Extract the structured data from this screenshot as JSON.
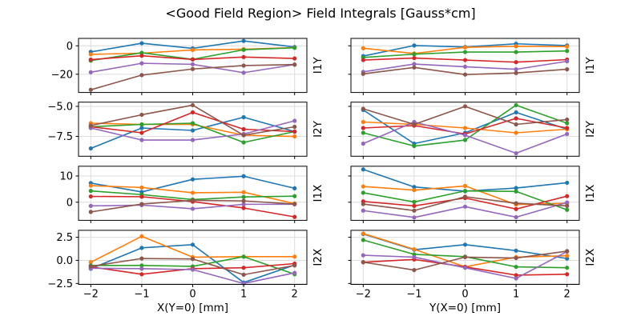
{
  "chart_data": {
    "type": "line",
    "title": "<Good Field Region> Field Integrals [Gauss*cm]",
    "grid": true,
    "legend": false,
    "x": [
      -2,
      -1,
      0,
      1,
      2
    ],
    "xtick_labels": [
      "−2",
      "−1",
      "0",
      "1",
      "2"
    ],
    "series_colors": [
      "#1f77b4",
      "#ff7f0e",
      "#2ca02c",
      "#d62728",
      "#9467bd",
      "#8c564b"
    ],
    "series_names": [
      "series-blue",
      "series-orange",
      "series-green",
      "series-red",
      "series-purple",
      "series-brown"
    ],
    "columns": [
      {
        "id": "left",
        "xlabel": "X(Y=0) [mm]"
      },
      {
        "id": "right",
        "xlabel": "Y(X=0) [mm]"
      }
    ],
    "rows": [
      {
        "label": "I1Y",
        "ylim": [
          -32.8,
          5.2
        ],
        "yticks": [
          0,
          -20
        ],
        "ytick_labels": [
          "0",
          "−20"
        ],
        "panels": {
          "left": {
            "series": [
              [
                -4.3,
                1.8,
                -1.8,
                3.4,
                -0.8
              ],
              [
                -6.0,
                -5.2,
                -2.9,
                -2.4,
                -1.2
              ],
              [
                -10.4,
                -4.9,
                -9.5,
                -2.8,
                -1.4
              ],
              [
                -9.7,
                -7.0,
                -9.6,
                -7.9,
                -8.9
              ],
              [
                -18.6,
                -12.3,
                -13.0,
                -18.9,
                -13.2
              ],
              [
                -30.9,
                -20.6,
                -16.3,
                -13.9,
                -13.2
              ]
            ]
          },
          "right": {
            "series": [
              [
                -7.2,
                0.2,
                -0.8,
                1.4,
                0.2
              ],
              [
                -1.7,
                -5.4,
                -1.1,
                -0.3,
                -0.5
              ],
              [
                -8.2,
                -5.9,
                -4.4,
                -4.4,
                -3.6
              ],
              [
                -10.0,
                -8.6,
                -10.0,
                -11.5,
                -9.7
              ],
              [
                -18.3,
                -12.8,
                -14.7,
                -16.5,
                -10.9
              ],
              [
                -19.7,
                -15.2,
                -20.2,
                -19.1,
                -16.5
              ]
            ]
          }
        }
      },
      {
        "label": "I2Y",
        "ylim": [
          -9.15,
          -4.65
        ],
        "yticks": [
          -5.0,
          -7.5
        ],
        "ytick_labels": [
          "−5.0",
          "−7.5"
        ],
        "panels": {
          "left": {
            "series": [
              [
                -8.5,
                -6.8,
                -7.0,
                -5.9,
                -7.1
              ],
              [
                -6.4,
                -6.5,
                -6.5,
                -7.4,
                -7.5
              ],
              [
                -6.7,
                -6.5,
                -6.4,
                -8.0,
                -7.1
              ],
              [
                -6.7,
                -7.2,
                -5.5,
                -6.9,
                -7.1
              ],
              [
                -6.8,
                -7.8,
                -7.8,
                -7.3,
                -6.2
              ],
              [
                -6.6,
                -5.7,
                -4.9,
                -7.4,
                -6.7
              ]
            ]
          },
          "right": {
            "series": [
              [
                -5.3,
                -8.1,
                -7.2,
                -5.5,
                -6.9
              ],
              [
                -6.3,
                -6.5,
                -6.8,
                -7.2,
                -6.9
              ],
              [
                -7.2,
                -8.3,
                -7.8,
                -4.9,
                -6.4
              ],
              [
                -6.8,
                -6.6,
                -7.3,
                -6.0,
                -6.8
              ],
              [
                -8.1,
                -6.3,
                -7.4,
                -8.9,
                -7.3
              ],
              [
                -5.2,
                -6.5,
                -5.0,
                -6.5,
                -6.1
              ]
            ]
          }
        }
      },
      {
        "label": "I1X",
        "ylim": [
          -6.9,
          13.7
        ],
        "yticks": [
          10,
          0
        ],
        "ytick_labels": [
          "10",
          "0"
        ],
        "panels": {
          "left": {
            "series": [
              [
                7.3,
                3.9,
                8.7,
                9.9,
                5.3
              ],
              [
                6.3,
                5.6,
                3.6,
                3.8,
                -0.5
              ],
              [
                4.3,
                2.9,
                1.0,
                2.0,
                2.3
              ],
              [
                2.2,
                2.1,
                0.2,
                -2.2,
                -5.6
              ],
              [
                -1.4,
                -1.1,
                -2.5,
                -0.8,
                -0.8
              ],
              [
                -3.7,
                -0.7,
                0.7,
                0.5,
                -0.7
              ]
            ]
          },
          "right": {
            "series": [
              [
                12.5,
                5.8,
                4.2,
                5.4,
                7.4
              ],
              [
                6.0,
                4.6,
                6.2,
                -0.9,
                -0.4
              ],
              [
                3.6,
                0.1,
                4.3,
                4.1,
                -2.9
              ],
              [
                0.3,
                -1.4,
                1.6,
                -2.6,
                2.3
              ],
              [
                -3.2,
                -5.8,
                -1.7,
                -5.7,
                -0.1
              ],
              [
                -0.7,
                -3.2,
                2.1,
                -0.4,
                -1.4
              ]
            ]
          }
        }
      },
      {
        "label": "I2X",
        "ylim": [
          -2.6,
          3.25
        ],
        "yticks": [
          2.5,
          0.0,
          -2.5
        ],
        "ytick_labels": [
          "2.5",
          "0.0",
          "−2.5"
        ],
        "panels": {
          "left": {
            "series": [
              [
                -0.9,
                1.35,
                1.7,
                -2.4,
                -0.5
              ],
              [
                -0.2,
                2.6,
                0.35,
                0.4,
                0.4
              ],
              [
                -0.55,
                -0.55,
                -0.65,
                0.4,
                -1.5
              ],
              [
                -0.7,
                -1.5,
                -0.9,
                -0.8,
                -0.35
              ],
              [
                -0.85,
                -0.9,
                -1.0,
                -2.5,
                -1.35
              ],
              [
                -0.65,
                0.2,
                0.15,
                -1.55,
                -0.55
              ]
            ]
          },
          "right": {
            "series": [
              [
                2.85,
                1.15,
                1.7,
                1.05,
                0.2
              ],
              [
                2.9,
                1.2,
                -0.7,
                0.35,
                0.5
              ],
              [
                2.2,
                0.65,
                0.4,
                -0.7,
                -0.8
              ],
              [
                -0.2,
                0.1,
                -0.7,
                -1.6,
                -1.5
              ],
              [
                0.55,
                0.35,
                -0.8,
                -1.95,
                0.95
              ],
              [
                -0.2,
                -1.05,
                0.35,
                0.25,
                1.0
              ]
            ]
          }
        }
      }
    ]
  }
}
